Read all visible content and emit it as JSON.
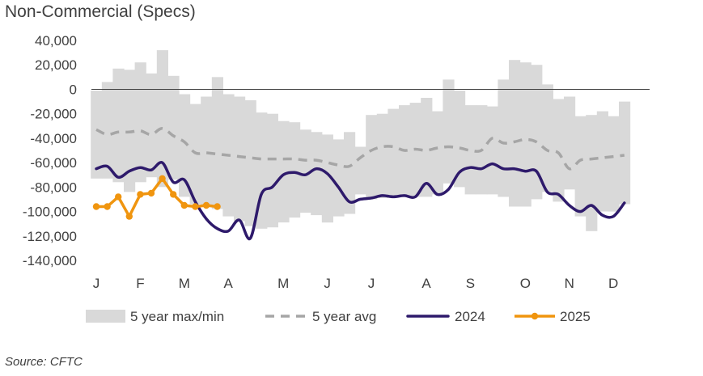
{
  "chart_data": {
    "type": "area",
    "title": "Non-Commercial (Specs)",
    "source": "Source: CFTC",
    "ylim": [
      -140000,
      40000
    ],
    "yticks": [
      40000,
      20000,
      0,
      -20000,
      -40000,
      -60000,
      -80000,
      -100000,
      -120000,
      -140000
    ],
    "ytick_labels": [
      "40,000",
      "20,000",
      "0",
      "-20,000",
      "-40,000",
      "-60,000",
      "-80,000",
      "-100,000",
      "-120,000",
      "-140,000"
    ],
    "xlim": [
      1,
      52
    ],
    "month_ticks": [
      {
        "label": "J",
        "week": 1
      },
      {
        "label": "F",
        "week": 5
      },
      {
        "label": "M",
        "week": 9
      },
      {
        "label": "A",
        "week": 13
      },
      {
        "label": "M",
        "week": 18
      },
      {
        "label": "J",
        "week": 22
      },
      {
        "label": "J",
        "week": 26
      },
      {
        "label": "A",
        "week": 31
      },
      {
        "label": "S",
        "week": 35
      },
      {
        "label": "O",
        "week": 40
      },
      {
        "label": "N",
        "week": 44
      },
      {
        "label": "D",
        "week": 48
      }
    ],
    "legend": {
      "placement": "bottom",
      "items": [
        {
          "key": "range",
          "label": "5 year max/min"
        },
        {
          "key": "avg",
          "label": "5 year avg"
        },
        {
          "key": "y2024",
          "label": "2024"
        },
        {
          "key": "y2025",
          "label": "2025"
        }
      ]
    },
    "colors": {
      "range": "#d9d9d9",
      "avg": "#a6a6a6",
      "y2024": "#2e1a6b",
      "y2025": "#f0950f",
      "text": "#404040",
      "zero_line": "#404040"
    },
    "range_max": [
      -1000,
      6000,
      17000,
      16000,
      22000,
      13000,
      32000,
      11000,
      -4000,
      -12000,
      -6000,
      10000,
      -4000,
      -6000,
      -9000,
      -19000,
      -20000,
      -26000,
      -27000,
      -33000,
      -35000,
      -37000,
      -41000,
      -35000,
      -47000,
      -21000,
      -20000,
      -16000,
      -13000,
      -11000,
      -7000,
      -18000,
      8000,
      -1000,
      -13000,
      -13000,
      -14000,
      8000,
      24000,
      22000,
      20000,
      4000,
      -8000,
      -6000,
      -22000,
      -21000,
      -18000,
      -22000,
      -10000
    ],
    "range_min": [
      -73000,
      -73000,
      -76000,
      -84000,
      -76000,
      -72000,
      -80000,
      -74000,
      -88000,
      -94000,
      -96000,
      -98000,
      -104000,
      -108000,
      -112000,
      -114000,
      -113000,
      -109000,
      -105000,
      -101000,
      -103000,
      -109000,
      -104000,
      -102000,
      -86000,
      -90000,
      -89000,
      -88000,
      -87000,
      -88000,
      -88000,
      -86000,
      -77000,
      -80000,
      -86000,
      -86000,
      -86000,
      -88000,
      -96000,
      -96000,
      -90000,
      -84000,
      -92000,
      -82000,
      -104000,
      -116000,
      -100000,
      -100000,
      -94000
    ],
    "avg": [
      -33000,
      -37000,
      -35000,
      -35000,
      -34000,
      -37000,
      -32000,
      -38000,
      -43000,
      -52000,
      -52000,
      -53000,
      -54000,
      -55000,
      -56000,
      -57000,
      -57000,
      -57000,
      -57000,
      -58000,
      -58000,
      -60000,
      -62000,
      -63000,
      -56000,
      -50000,
      -47000,
      -47000,
      -50000,
      -49000,
      -50000,
      -48000,
      -47000,
      -48000,
      -50000,
      -50000,
      -40000,
      -44000,
      -43000,
      -41000,
      -43000,
      -50000,
      -52000,
      -65000,
      -58000,
      -57000,
      -56000,
      -55000,
      -54000
    ],
    "series_2024": [
      -65000,
      -63000,
      -72000,
      -67000,
      -64000,
      -66000,
      -60000,
      -76000,
      -74000,
      -92000,
      -106000,
      -114000,
      -116000,
      -107000,
      -122000,
      -86000,
      -80000,
      -70000,
      -68000,
      -70000,
      -65000,
      -69000,
      -80000,
      -92000,
      -90000,
      -89000,
      -87000,
      -88000,
      -87000,
      -88000,
      -77000,
      -86000,
      -82000,
      -68000,
      -64000,
      -65000,
      -61000,
      -65000,
      -65000,
      -67000,
      -67000,
      -84000,
      -86000,
      -95000,
      -100000,
      -95000,
      -103000,
      -104000,
      -93000
    ],
    "series_2025": [
      -96000,
      -96000,
      -88000,
      -104000,
      -86000,
      -85000,
      -73000,
      -86000,
      -95000,
      -96000,
      -95000,
      -96000
    ]
  }
}
